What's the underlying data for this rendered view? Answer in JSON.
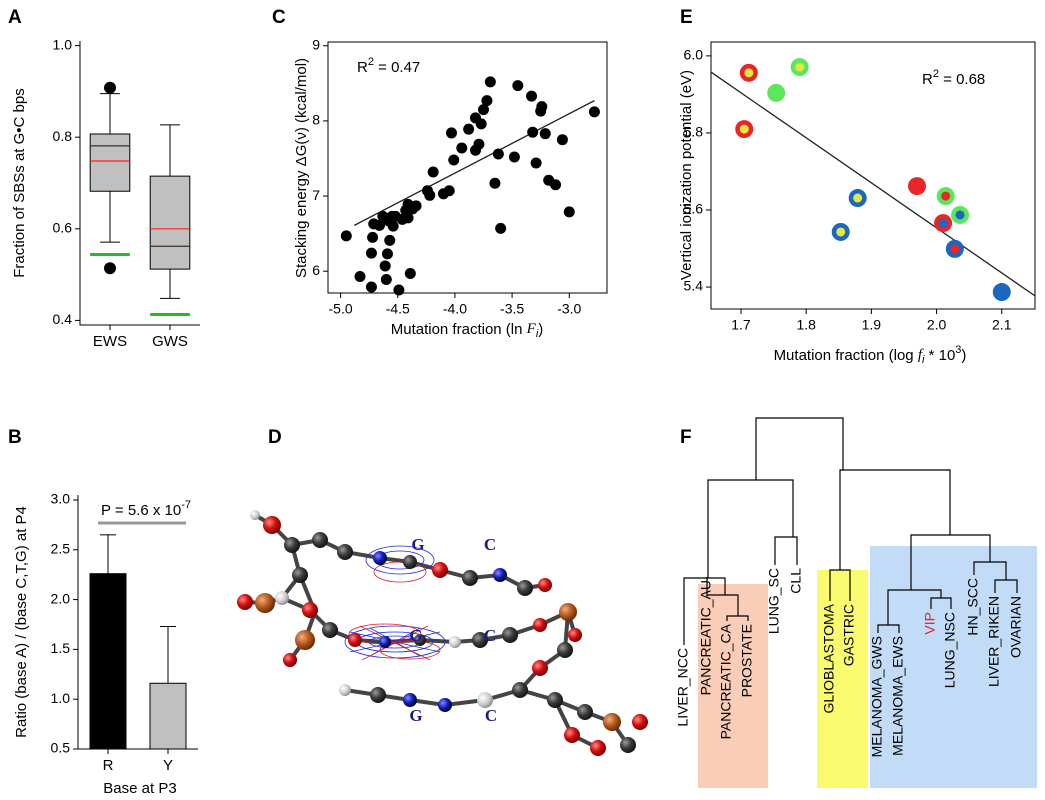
{
  "chart_data": [
    {
      "panel": "A",
      "type": "box",
      "ylabel": "Fraction of SBSs at G•C bps",
      "categories": [
        "EWS",
        "GWS"
      ],
      "whisker_low": [
        0.571,
        0.448
      ],
      "q1": [
        0.682,
        0.512
      ],
      "median": [
        0.781,
        0.562
      ],
      "q3": [
        0.807,
        0.715
      ],
      "whisker_high": [
        0.895,
        0.827
      ],
      "mean": [
        0.748,
        0.6
      ],
      "outliers": [
        [
          0.908,
          0.514
        ],
        []
      ],
      "reference": [
        0.544,
        0.413
      ],
      "box_color": "#c0c0c0",
      "median_color": "#333333",
      "mean_color": "#ff2020",
      "reference_color": "#22bb22",
      "ylim": [
        0.39,
        1.01
      ],
      "yticks": [
        0.4,
        0.6,
        0.8,
        {
          "value": 1,
          "label": "1.0"
        }
      ]
    },
    {
      "panel": "B",
      "type": "bar",
      "ylabel": "Ratio (base A) / (base C,T,G) at P4",
      "xlabel": "Base at P3",
      "categories": [
        "R",
        "Y"
      ],
      "values": [
        2.26,
        1.16
      ],
      "errors": [
        0.39,
        0.57
      ],
      "colors": [
        "#000000",
        "#c0c0c0"
      ],
      "annotation_parts": [
        "P = 5.6 x 10",
        "-7"
      ],
      "ylim": [
        0.5,
        3.05
      ],
      "yticks": [
        0.5,
        {
          "value": 1,
          "label": "1.0"
        },
        1.5,
        {
          "value": 2,
          "label": "2.0"
        },
        2.5,
        {
          "value": 3,
          "label": "3.0"
        }
      ]
    },
    {
      "panel": "C",
      "type": "scatter",
      "ylabel": "Stacking energy ΔG(ν) (kcal/mol)",
      "xlabel_parts": [
        "Mutation fraction (ln ",
        "F",
        "i",
        ")"
      ],
      "annotation_parts": [
        "R",
        "2",
        " = 0.47"
      ],
      "color": "#000000",
      "x": [
        -4.95,
        -4.83,
        -4.73,
        -4.73,
        -4.72,
        -4.71,
        -4.66,
        -4.63,
        -4.61,
        -4.6,
        -4.59,
        -4.57,
        -4.58,
        -4.55,
        -4.54,
        -4.52,
        -4.49,
        -4.46,
        -4.43,
        -4.41,
        -4.39,
        -4.41,
        -4.37,
        -4.34,
        -4.24,
        -4.22,
        -4.19,
        -4.1,
        -4.05,
        -4.03,
        -4.01,
        -3.94,
        -3.88,
        -3.82,
        -3.82,
        -3.79,
        -3.77,
        -3.72,
        -3.69,
        -3.75,
        -3.65,
        -3.62,
        -3.6,
        -3.48,
        -3.45,
        -3.33,
        -3.32,
        -3.29,
        -3.25,
        -3.24,
        -3.21,
        -3.18,
        -3.12,
        -3.06,
        -3.0,
        -2.78
      ],
      "values": [
        6.47,
        5.93,
        5.79,
        6.24,
        6.45,
        6.63,
        6.61,
        6.73,
        6.07,
        5.89,
        6.23,
        6.41,
        6.67,
        6.73,
        6.6,
        6.73,
        5.75,
        6.69,
        6.81,
        6.71,
        5.97,
        6.89,
        6.83,
        6.87,
        7.07,
        7.01,
        7.32,
        7.03,
        7.07,
        7.84,
        7.48,
        7.64,
        7.89,
        7.61,
        8.04,
        7.69,
        7.96,
        8.27,
        8.52,
        8.15,
        7.17,
        7.56,
        6.57,
        7.52,
        8.47,
        8.33,
        7.85,
        7.44,
        8.13,
        8.19,
        7.83,
        7.21,
        7.15,
        7.75,
        6.79,
        8.12
      ],
      "fit_x": [
        -4.88,
        -2.78
      ],
      "fit_y": [
        6.61,
        8.27
      ],
      "xlim": [
        -5.11,
        -2.67
      ],
      "ylim": [
        5.71,
        9.05
      ],
      "xticks": [
        {
          "value": -5,
          "label": "-5.0"
        },
        -4.5,
        {
          "value": -4,
          "label": "-4.0"
        },
        -3.5,
        {
          "value": -3,
          "label": "-3.0"
        }
      ],
      "yticks": [
        6,
        7,
        8,
        9
      ]
    },
    {
      "panel": "D",
      "type": "molecule",
      "labels": [
        "G",
        "C",
        "G",
        "C",
        "G",
        "C"
      ]
    },
    {
      "panel": "E",
      "type": "scatter",
      "ylabel": "Vertical ionization potential (eV)",
      "xlabel_parts": [
        "Mutation fraction (log ",
        "f",
        "i",
        " * 10",
        "3",
        ")"
      ],
      "annotation_parts": [
        "R",
        "2",
        " = 0.68"
      ],
      "x": [
        1.712,
        1.79,
        1.754,
        1.705,
        1.97,
        2.014,
        2.01,
        2.036,
        2.028,
        1.879,
        1.853,
        2.1
      ],
      "values": [
        5.956,
        5.971,
        5.904,
        5.81,
        5.662,
        5.636,
        5.566,
        5.587,
        5.499,
        5.631,
        5.543,
        5.387
      ],
      "ring_colors": [
        "#e8262a",
        "#5ce65c",
        "#5ce65c",
        "#e8262a",
        "#e8262a",
        "#5ce65c",
        "#e8262a",
        "#5ce65c",
        "#1a66c0",
        "#1a66c0",
        "#1a66c0",
        "#1a66c0"
      ],
      "center_colors": [
        "#e6e640",
        "#e6e640",
        null,
        "#e6e640",
        null,
        "#e8262a",
        "#1a66c0",
        "#1a66c0",
        "#e8262a",
        "#e6e640",
        "#e6e640",
        null
      ],
      "fit_x": [
        1.654,
        2.151
      ],
      "fit_y": [
        5.958,
        5.377
      ],
      "xlim": [
        1.654,
        2.151
      ],
      "ylim": [
        5.343,
        6.036
      ],
      "xticks": [
        1.7,
        1.8,
        1.9,
        {
          "value": 2,
          "label": "2.0"
        },
        2.1
      ],
      "yticks": [
        {
          "value": 6,
          "label": "6.0"
        },
        5.8,
        5.6,
        5.4
      ]
    },
    {
      "panel": "F",
      "type": "dendrogram",
      "leaves": [
        "LIVER_NCC",
        "PANCREATIC_AU",
        "PANCREATIC_CA",
        "PROSTATE",
        "LUNG_SC",
        "CLL",
        "GLIOBLASTOMA",
        "GASTRIC",
        "MELANOMA_GWS",
        "MELANOMA_EWS",
        "VIP",
        "LUNG_NSC",
        "HN_SCC",
        "LIVER_RIKEN",
        "OVARIAN"
      ],
      "leaf_colors": [
        "#000000",
        "#000000",
        "#000000",
        "#000000",
        "#000000",
        "#000000",
        "#000000",
        "#000000",
        "#000000",
        "#000000",
        "#e8262a",
        "#000000",
        "#000000",
        "#000000",
        "#000000"
      ]
    }
  ]
}
